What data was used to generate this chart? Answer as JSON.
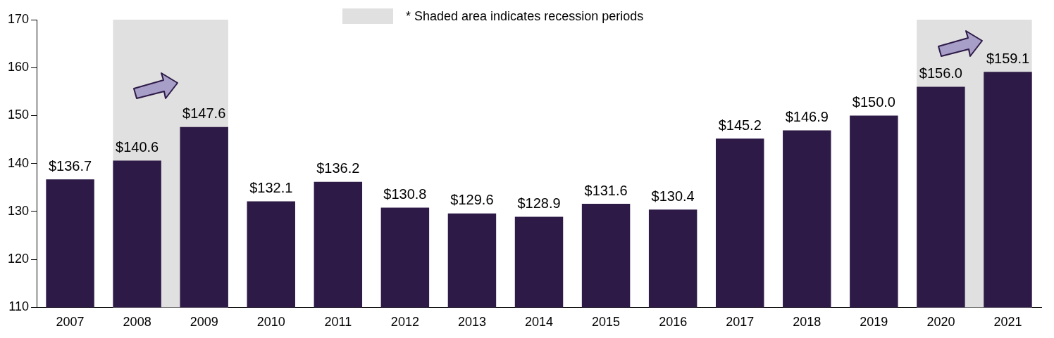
{
  "chart_data": {
    "type": "bar",
    "categories": [
      "2007",
      "2008",
      "2009",
      "2010",
      "2011",
      "2012",
      "2013",
      "2014",
      "2015",
      "2016",
      "2017",
      "2018",
      "2019",
      "2020",
      "2021"
    ],
    "values": [
      136.7,
      140.6,
      147.6,
      132.1,
      136.2,
      130.8,
      129.6,
      128.9,
      131.6,
      130.4,
      145.2,
      146.9,
      150.0,
      156.0,
      159.1
    ],
    "value_labels": [
      "$136.7",
      "$140.6",
      "$147.6",
      "$132.1",
      "$136.2",
      "$130.8",
      "$129.6",
      "$128.9",
      "$131.6",
      "$130.4",
      "$145.2",
      "$146.9",
      "$150.0",
      "$156.0",
      "$159.1"
    ],
    "color": "#2e1a47",
    "ylim": [
      110,
      170
    ],
    "yticks": [
      110,
      120,
      130,
      140,
      150,
      160,
      170
    ],
    "grid": false,
    "legend": false,
    "bands": [
      {
        "axis": "x",
        "from": "2008",
        "to": "2009",
        "color": "#e0e0e0"
      },
      {
        "axis": "x",
        "from": "2020",
        "to": "2021",
        "color": "#e0e0e0"
      }
    ],
    "annotations": [
      "* Shaded area indicates recession periods"
    ]
  }
}
